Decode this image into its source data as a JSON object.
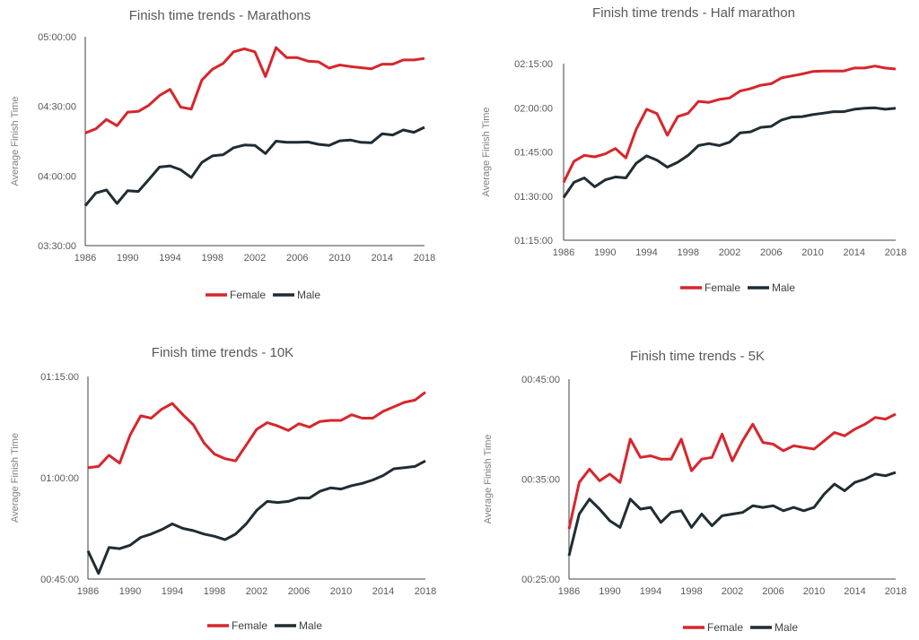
{
  "chart_data": [
    {
      "type": "line",
      "title": "Finish time trends - Marathons",
      "xlabel": "",
      "ylabel": "Average Finish Time",
      "x": [
        1986,
        1987,
        1988,
        1989,
        1990,
        1991,
        1992,
        1993,
        1994,
        1995,
        1996,
        1997,
        1998,
        1999,
        2000,
        2001,
        2002,
        2003,
        2004,
        2005,
        2006,
        2007,
        2008,
        2009,
        2010,
        2011,
        2012,
        2013,
        2014,
        2015,
        2016,
        2017,
        2018
      ],
      "x_ticks": [
        "1986",
        "1990",
        "1994",
        "1998",
        "2002",
        "2006",
        "2010",
        "2014",
        "2018"
      ],
      "ylim": [
        12600,
        18000
      ],
      "y_ticks": [
        {
          "label": "03:30:00",
          "value": 12600
        },
        {
          "label": "04:00:00",
          "value": 14400
        },
        {
          "label": "04:30:00",
          "value": 16200
        },
        {
          "label": "05:00:00",
          "value": 18000
        }
      ],
      "series": [
        {
          "name": "Female",
          "color": "#d7262c",
          "values": [
            15510,
            15620,
            15860,
            15700,
            16050,
            16070,
            16230,
            16480,
            16640,
            16180,
            16130,
            16880,
            17160,
            17310,
            17610,
            17690,
            17610,
            16970,
            17720,
            17460,
            17460,
            17370,
            17350,
            17190,
            17270,
            17230,
            17200,
            17170,
            17290,
            17290,
            17400,
            17400,
            17440
          ]
        },
        {
          "name": "Male",
          "color": "#1f2d33",
          "values": [
            13630,
            13960,
            14040,
            13690,
            14020,
            14000,
            14310,
            14630,
            14660,
            14560,
            14360,
            14750,
            14920,
            14950,
            15130,
            15200,
            15190,
            14980,
            15300,
            15270,
            15270,
            15280,
            15220,
            15190,
            15310,
            15330,
            15270,
            15260,
            15490,
            15460,
            15590,
            15530,
            15660
          ]
        }
      ]
    },
    {
      "type": "line",
      "title": "Finish time trends - Half marathon",
      "xlabel": "",
      "ylabel": "Average Finish Time",
      "x": [
        1986,
        1987,
        1988,
        1989,
        1990,
        1991,
        1992,
        1993,
        1994,
        1995,
        1996,
        1997,
        1998,
        1999,
        2000,
        2001,
        2002,
        2003,
        2004,
        2005,
        2006,
        2007,
        2008,
        2009,
        2010,
        2011,
        2012,
        2013,
        2014,
        2015,
        2016,
        2017,
        2018
      ],
      "x_ticks": [
        "1986",
        "1990",
        "1994",
        "1998",
        "2002",
        "2006",
        "2010",
        "2014",
        "2018"
      ],
      "ylim": [
        4500,
        8100
      ],
      "y_ticks": [
        {
          "label": "01:15:00",
          "value": 4500
        },
        {
          "label": "01:30:00",
          "value": 5400
        },
        {
          "label": "01:45:00",
          "value": 6300
        },
        {
          "label": "02:00:00",
          "value": 7200
        },
        {
          "label": "02:15:00",
          "value": 8100
        }
      ],
      "series": [
        {
          "name": "Female",
          "color": "#d7262c",
          "values": [
            5680,
            6110,
            6230,
            6200,
            6260,
            6370,
            6180,
            6760,
            7170,
            7080,
            6640,
            7020,
            7090,
            7330,
            7310,
            7370,
            7400,
            7540,
            7590,
            7660,
            7690,
            7810,
            7850,
            7890,
            7940,
            7950,
            7950,
            7950,
            8010,
            8010,
            8050,
            8010,
            7990
          ]
        },
        {
          "name": "Male",
          "color": "#1f2d33",
          "values": [
            5370,
            5680,
            5770,
            5590,
            5730,
            5790,
            5770,
            6070,
            6220,
            6130,
            5990,
            6090,
            6230,
            6430,
            6470,
            6430,
            6500,
            6690,
            6710,
            6800,
            6820,
            6950,
            7010,
            7020,
            7060,
            7090,
            7120,
            7120,
            7170,
            7190,
            7200,
            7170,
            7190
          ]
        }
      ]
    },
    {
      "type": "line",
      "title": "Finish time trends - 10K",
      "xlabel": "",
      "ylabel": "Average Finish Time",
      "x": [
        1986,
        1987,
        1988,
        1989,
        1990,
        1991,
        1992,
        1993,
        1994,
        1995,
        1996,
        1997,
        1998,
        1999,
        2000,
        2001,
        2002,
        2003,
        2004,
        2005,
        2006,
        2007,
        2008,
        2009,
        2010,
        2011,
        2012,
        2013,
        2014,
        2015,
        2016,
        2017,
        2018
      ],
      "x_ticks": [
        "1986",
        "1990",
        "1994",
        "1998",
        "2002",
        "2006",
        "2010",
        "2014",
        "2018"
      ],
      "ylim": [
        2700,
        4500
      ],
      "y_ticks": [
        {
          "label": "00:45:00",
          "value": 2700
        },
        {
          "label": "01:00:00",
          "value": 3600
        },
        {
          "label": "01:15:00",
          "value": 4500
        }
      ],
      "series": [
        {
          "name": "Female",
          "color": "#d7262c",
          "values": [
            3690,
            3700,
            3800,
            3730,
            3980,
            4150,
            4130,
            4210,
            4260,
            4160,
            4070,
            3910,
            3810,
            3770,
            3750,
            3890,
            4030,
            4090,
            4060,
            4020,
            4080,
            4050,
            4100,
            4110,
            4110,
            4160,
            4130,
            4130,
            4190,
            4230,
            4270,
            4290,
            4360
          ]
        },
        {
          "name": "Male",
          "color": "#1f2d33",
          "values": [
            2950,
            2750,
            2980,
            2970,
            3000,
            3070,
            3100,
            3140,
            3190,
            3150,
            3130,
            3100,
            3080,
            3050,
            3100,
            3190,
            3310,
            3390,
            3380,
            3390,
            3420,
            3420,
            3480,
            3510,
            3500,
            3530,
            3550,
            3580,
            3620,
            3680,
            3690,
            3700,
            3750
          ]
        }
      ]
    },
    {
      "type": "line",
      "title": "Finish time trends - 5K",
      "xlabel": "",
      "ylabel": "Average Finish Time",
      "x": [
        1986,
        1987,
        1988,
        1989,
        1990,
        1991,
        1992,
        1993,
        1994,
        1995,
        1996,
        1997,
        1998,
        1999,
        2000,
        2001,
        2002,
        2003,
        2004,
        2005,
        2006,
        2007,
        2008,
        2009,
        2010,
        2011,
        2012,
        2013,
        2014,
        2015,
        2016,
        2017,
        2018
      ],
      "x_ticks": [
        "1986",
        "1990",
        "1994",
        "1998",
        "2002",
        "2006",
        "2010",
        "2014",
        "2018"
      ],
      "ylim": [
        1500,
        2700
      ],
      "y_ticks": [
        {
          "label": "00:25:00",
          "value": 1500
        },
        {
          "label": "00:35:00",
          "value": 2100
        },
        {
          "label": "00:45:00",
          "value": 2700
        }
      ],
      "series": [
        {
          "name": "Female",
          "color": "#d7262c",
          "values": [
            1800,
            2080,
            2160,
            2090,
            2130,
            2080,
            2340,
            2230,
            2240,
            2220,
            2220,
            2340,
            2150,
            2220,
            2230,
            2370,
            2210,
            2330,
            2430,
            2320,
            2310,
            2270,
            2300,
            2290,
            2280,
            2330,
            2380,
            2360,
            2400,
            2430,
            2470,
            2460,
            2490
          ]
        },
        {
          "name": "Male",
          "color": "#1f2d33",
          "values": [
            1640,
            1890,
            1980,
            1920,
            1850,
            1810,
            1980,
            1920,
            1930,
            1840,
            1900,
            1910,
            1810,
            1890,
            1820,
            1880,
            1890,
            1900,
            1940,
            1930,
            1940,
            1910,
            1930,
            1910,
            1930,
            2010,
            2070,
            2030,
            2080,
            2100,
            2130,
            2120,
            2140
          ]
        }
      ]
    }
  ]
}
